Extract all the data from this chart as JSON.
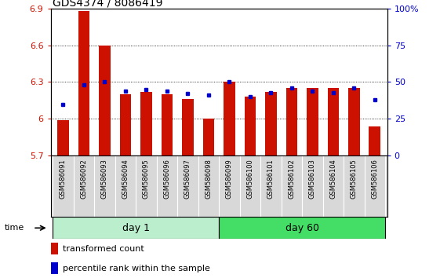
{
  "title": "GDS4374 / 8086419",
  "samples": [
    "GSM586091",
    "GSM586092",
    "GSM586093",
    "GSM586094",
    "GSM586095",
    "GSM586096",
    "GSM586097",
    "GSM586098",
    "GSM586099",
    "GSM586100",
    "GSM586101",
    "GSM586102",
    "GSM586103",
    "GSM586104",
    "GSM586105",
    "GSM586106"
  ],
  "bar_values": [
    5.99,
    6.88,
    6.6,
    6.2,
    6.22,
    6.2,
    6.16,
    6.0,
    6.3,
    6.18,
    6.22,
    6.25,
    6.25,
    6.25,
    6.25,
    5.94
  ],
  "dot_values": [
    35,
    48,
    50,
    44,
    45,
    44,
    42,
    41,
    50,
    40,
    43,
    46,
    44,
    43,
    46,
    38
  ],
  "ymin": 5.7,
  "ymax": 6.9,
  "yticks": [
    5.7,
    6.0,
    6.3,
    6.6,
    6.9
  ],
  "ytick_labels": [
    "5.7",
    "6",
    "6.3",
    "6.6",
    "6.9"
  ],
  "y2min": 0,
  "y2max": 100,
  "y2ticks": [
    0,
    25,
    50,
    75,
    100
  ],
  "y2tick_labels": [
    "0",
    "25",
    "50",
    "75",
    "100%"
  ],
  "bar_color": "#cc1100",
  "dot_color": "#0000cc",
  "day1_color": "#bbeecc",
  "day60_color": "#44dd66",
  "day1_label": "day 1",
  "day60_label": "day 60",
  "day1_count": 8,
  "day60_count": 8,
  "bar_label": "transformed count",
  "dot_label": "percentile rank within the sample",
  "time_label": "time",
  "sample_bg_color": "#d8d8d8",
  "title_fontsize": 10,
  "tick_fontsize": 8,
  "label_fontsize": 8,
  "sample_fontsize": 6
}
